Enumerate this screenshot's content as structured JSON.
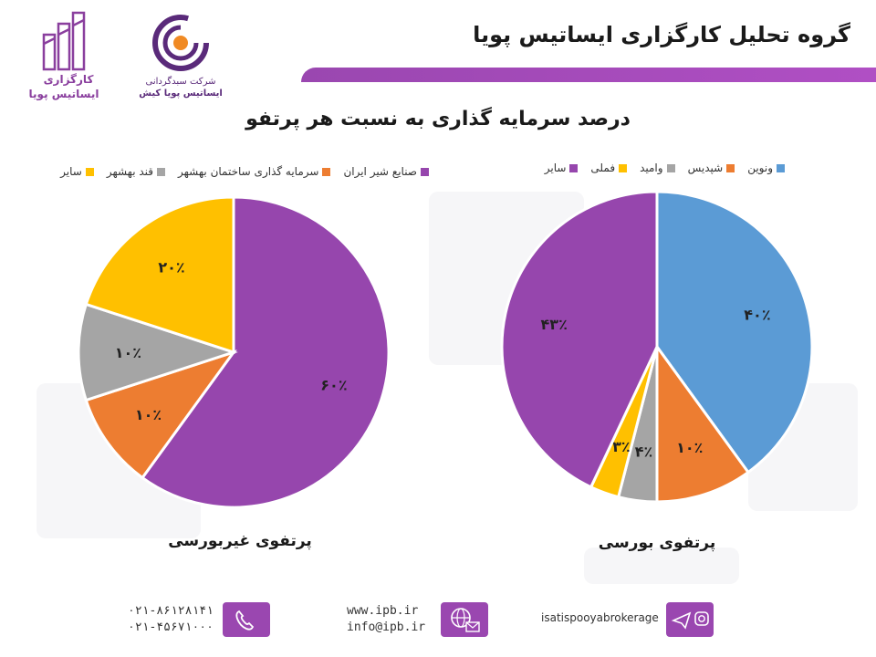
{
  "header": {
    "title": "گروه تحلیل کارگزاری ایساتیس پویا"
  },
  "logos": {
    "left_logo": {
      "line1": "کارگزاری",
      "line2": "ایساتیس پویا"
    },
    "second_logo": {
      "line1": "شرکت سبدگردانی",
      "line2": "ایساتیس پویا کیش"
    }
  },
  "chart_title": "درصد سرمایه گذاری به نسبت هر پرتفو",
  "chart_data": [
    {
      "type": "pie",
      "caption": "پرتفوی غیربورسی",
      "legend_position": "top",
      "slices": [
        {
          "name": "صنایع شیر ایران",
          "value": 60,
          "label": "۶۰٪",
          "color": "#9646ad"
        },
        {
          "name": "سرمایه گذاری ساختمان بهشهر",
          "value": 10,
          "label": "۱۰٪",
          "color": "#ed7d31"
        },
        {
          "name": "قند بهشهر",
          "value": 10,
          "label": "۱۰٪",
          "color": "#a5a5a5"
        },
        {
          "name": "سایر",
          "value": 20,
          "label": "۲۰٪",
          "color": "#ffc000"
        }
      ]
    },
    {
      "type": "pie",
      "caption": "پرتفوی بورسی",
      "legend_position": "top",
      "slices": [
        {
          "name": "ونوین",
          "value": 40,
          "label": "۴۰٪",
          "color": "#5b9bd5"
        },
        {
          "name": "شپدیس",
          "value": 10,
          "label": "۱۰٪",
          "color": "#ed7d31"
        },
        {
          "name": "وامید",
          "value": 4,
          "label": "۴٪",
          "color": "#a5a5a5"
        },
        {
          "name": "فملی",
          "value": 3,
          "label": "۳٪",
          "color": "#ffc000"
        },
        {
          "name": "سایر",
          "value": 43,
          "label": "۴۳٪",
          "color": "#9646ad"
        }
      ]
    }
  ],
  "footer": {
    "phone1": "۰۲۱-۸۶۱۲۸۱۴۱",
    "phone2": "۰۲۱-۴۵۶۷۱۰۰۰",
    "website": "www.ipb.ir",
    "email": "info@ipb.ir",
    "social": "isatispooyabrokerage",
    "icons": [
      "phone-icon",
      "globe-mail-icon",
      "telegram-instagram-icon"
    ]
  }
}
